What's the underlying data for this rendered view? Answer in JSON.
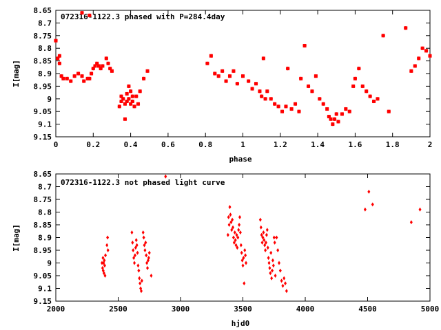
{
  "colors": {
    "points": "#ff0000",
    "axes": "#000000",
    "background": "#ffffff"
  },
  "chart_data": [
    {
      "type": "scatter",
      "title": "072316-1122.3 phased with P=284.4day",
      "xlabel": "phase",
      "ylabel": "I[mag]",
      "xlim": [
        0,
        2
      ],
      "ylim": [
        8.65,
        9.15
      ],
      "y_inverted": true,
      "grid": false,
      "marker": "star",
      "xticks": [
        0,
        0.2,
        0.4,
        0.6,
        0.8,
        1,
        1.2,
        1.4,
        1.6,
        1.8,
        2
      ],
      "yticks": [
        8.65,
        8.7,
        8.75,
        8.8,
        8.85,
        8.9,
        8.95,
        9,
        9.05,
        9.1,
        9.15
      ],
      "xtick_labels": [
        "0",
        "0.2",
        "0.4",
        "0.6",
        "0.8",
        "1",
        "1.2",
        "1.4",
        "1.6",
        "1.8",
        "2"
      ],
      "ytick_labels": [
        "8.65",
        "8.7",
        "8.75",
        "8.8",
        "8.85",
        "8.9",
        "8.95",
        "9",
        "9.05",
        "9.1",
        "9.15"
      ],
      "series": [
        {
          "x": [
            0.0,
            0.01,
            0.02,
            0.02,
            0.03,
            0.04,
            0.06,
            0.08,
            0.1,
            0.12,
            0.14,
            0.15,
            0.17,
            0.18,
            0.19,
            0.2,
            0.21,
            0.22,
            0.23,
            0.24,
            0.25,
            0.27,
            0.28,
            0.29,
            0.3,
            0.14,
            0.18,
            0.34,
            0.35,
            0.35,
            0.36,
            0.37,
            0.37,
            0.38,
            0.38,
            0.39,
            0.39,
            0.4,
            0.4,
            0.41,
            0.41,
            0.42,
            0.43,
            0.44,
            0.45,
            0.47,
            0.49,
            0.81,
            0.83,
            0.85,
            0.87,
            0.89,
            0.91,
            0.93,
            0.95,
            0.97,
            1.0,
            1.03,
            1.05,
            1.07,
            1.09,
            1.1,
            1.11,
            1.12,
            1.13,
            1.15,
            1.17,
            1.19,
            1.21,
            1.23,
            1.24,
            1.26,
            1.28,
            1.3,
            1.31,
            1.33,
            1.35,
            1.37,
            1.39,
            1.41,
            1.43,
            1.45,
            1.46,
            1.47,
            1.48,
            1.49,
            1.5,
            1.51,
            1.53,
            1.55,
            1.57,
            1.59,
            1.6,
            1.62,
            1.64,
            1.66,
            1.68,
            1.7,
            1.72,
            1.75,
            1.78,
            1.87,
            1.9,
            1.92,
            1.94,
            1.96,
            1.98,
            2.0
          ],
          "y": [
            8.77,
            8.84,
            8.83,
            8.86,
            8.91,
            8.92,
            8.92,
            8.93,
            8.91,
            8.9,
            8.91,
            8.93,
            8.92,
            8.92,
            8.9,
            8.88,
            8.87,
            8.86,
            8.87,
            8.88,
            8.87,
            8.84,
            8.86,
            8.88,
            8.89,
            8.66,
            8.67,
            9.03,
            8.99,
            9.01,
            9.0,
            9.02,
            9.08,
            8.98,
            9.01,
            9.0,
            8.95,
            9.02,
            8.97,
            8.99,
            9.01,
            9.03,
            8.99,
            9.02,
            8.97,
            8.92,
            8.89,
            8.86,
            8.83,
            8.9,
            8.91,
            8.89,
            8.93,
            8.91,
            8.89,
            8.94,
            8.91,
            8.93,
            8.96,
            8.94,
            8.97,
            8.99,
            8.84,
            9.0,
            8.97,
            9.0,
            9.02,
            9.03,
            9.05,
            9.03,
            8.88,
            9.04,
            9.02,
            9.05,
            8.92,
            8.79,
            8.95,
            8.97,
            8.91,
            9.0,
            9.02,
            9.04,
            9.07,
            9.08,
            9.1,
            9.08,
            9.06,
            9.09,
            9.06,
            9.04,
            9.05,
            8.95,
            8.92,
            8.88,
            8.95,
            8.97,
            8.99,
            9.01,
            9.0,
            8.75,
            9.05,
            8.72,
            8.89,
            8.87,
            8.84,
            8.8,
            8.81,
            8.83
          ]
        }
      ]
    },
    {
      "type": "scatter",
      "title": "072316-1122.3 not phased light curve",
      "xlabel": "hjd0",
      "ylabel": "I[mag]",
      "xlim": [
        2000,
        5000
      ],
      "ylim": [
        8.65,
        9.15
      ],
      "y_inverted": true,
      "grid": false,
      "marker": "diamond",
      "xticks": [
        2000,
        2500,
        3000,
        3500,
        4000,
        4500,
        5000
      ],
      "yticks": [
        8.65,
        8.7,
        8.75,
        8.8,
        8.85,
        8.9,
        8.95,
        9,
        9.05,
        9.1,
        9.15
      ],
      "xtick_labels": [
        "2000",
        "2500",
        "3000",
        "3500",
        "4000",
        "4500",
        "5000"
      ],
      "ytick_labels": [
        "8.65",
        "8.7",
        "8.75",
        "8.8",
        "8.85",
        "8.9",
        "8.95",
        "9",
        "9.05",
        "9.1",
        "9.15"
      ],
      "series": [
        {
          "x": [
            2370,
            2375,
            2378,
            2380,
            2383,
            2386,
            2389,
            2392,
            2395,
            2398,
            2410,
            2415,
            2418,
            2610,
            2615,
            2620,
            2625,
            2630,
            2635,
            2640,
            2645,
            2650,
            2655,
            2660,
            2665,
            2670,
            2675,
            2680,
            2685,
            2690,
            2700,
            2705,
            2710,
            2715,
            2720,
            2725,
            2730,
            2735,
            2740,
            2745,
            2750,
            2765,
            2880,
            3380,
            3385,
            3390,
            3395,
            3400,
            3405,
            3410,
            3415,
            3420,
            3425,
            3430,
            3435,
            3440,
            3445,
            3450,
            3455,
            3460,
            3465,
            3470,
            3475,
            3480,
            3485,
            3490,
            3495,
            3500,
            3505,
            3510,
            3515,
            3520,
            3525,
            3640,
            3645,
            3650,
            3655,
            3660,
            3665,
            3670,
            3675,
            3680,
            3685,
            3690,
            3695,
            3700,
            3705,
            3710,
            3715,
            3720,
            3725,
            3730,
            3735,
            3740,
            3745,
            3750,
            3755,
            3760,
            3770,
            3780,
            3790,
            3800,
            3810,
            3820,
            3830,
            3840,
            3850,
            4480,
            4510,
            4540,
            4850,
            4920
          ],
          "y": [
            9.0,
            9.02,
            8.98,
            9.03,
            9.0,
            9.04,
            8.99,
            9.01,
            9.05,
            8.97,
            8.93,
            8.9,
            8.95,
            8.88,
            8.92,
            8.95,
            8.98,
            9.0,
            8.97,
            8.94,
            8.91,
            8.93,
            8.96,
            9.01,
            9.03,
            9.06,
            9.08,
            9.1,
            9.11,
            9.07,
            8.88,
            8.9,
            8.93,
            8.95,
            8.92,
            8.97,
            9.0,
            9.02,
            8.99,
            8.98,
            8.96,
            9.05,
            8.66,
            8.89,
            8.82,
            8.85,
            8.78,
            8.81,
            8.84,
            8.87,
            8.83,
            8.86,
            8.9,
            8.92,
            8.88,
            8.91,
            8.93,
            8.89,
            8.94,
            8.9,
            8.87,
            8.85,
            8.82,
            8.88,
            8.93,
            8.96,
            8.99,
            9.01,
            8.98,
            9.08,
            8.95,
            8.97,
            9.0,
            8.83,
            8.86,
            8.89,
            8.92,
            8.9,
            8.88,
            8.91,
            8.93,
            8.95,
            8.92,
            8.89,
            8.87,
            8.94,
            8.98,
            9.0,
            9.02,
            9.04,
            8.96,
            9.06,
            9.03,
            8.99,
            9.01,
            8.9,
            8.92,
            9.05,
            8.9,
            8.95,
            9.0,
            9.03,
            9.07,
            9.09,
            9.06,
            9.08,
            9.11,
            8.79,
            8.72,
            8.77,
            8.84,
            8.79
          ]
        }
      ]
    }
  ]
}
